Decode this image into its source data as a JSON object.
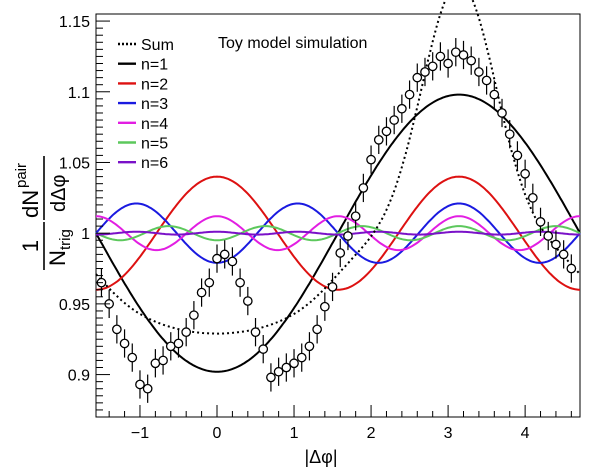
{
  "chart_data": {
    "type": "line",
    "title": "Toy model simulation",
    "xlabel": "|Δφ|",
    "ylabel": {
      "numerator": "dN",
      "numerator_sup": "pair",
      "prefactor_num": "1",
      "prefactor_den": "N",
      "prefactor_den_sub": "trig",
      "denominator": "dΔφ"
    },
    "xlim": [
      -1.5708,
      4.7124
    ],
    "ylim": [
      0.87,
      1.155
    ],
    "xticks": [
      -1,
      0,
      1,
      2,
      3,
      4
    ],
    "xtick_labels": [
      "−1",
      "0",
      "1",
      "2",
      "3",
      "4"
    ],
    "yticks": [
      0.9,
      0.95,
      1,
      1.05,
      1.1,
      1.15
    ],
    "ytick_labels": [
      "0.9",
      "0.95",
      "1",
      "1.05",
      "1.1",
      "1.15"
    ],
    "grid": false,
    "legend_position": "top-left",
    "model": "y = 1 + Σ 2·vn·cos(n·Δφ)",
    "series": [
      {
        "name": "n=1",
        "color": "#000000",
        "style": "solid",
        "v2n": -0.098,
        "n": 1
      },
      {
        "name": "n=2",
        "color": "#dd1111",
        "style": "solid",
        "v2n": 0.04,
        "n": 2
      },
      {
        "name": "n=3",
        "color": "#1a1ae0",
        "style": "solid",
        "v2n": -0.021,
        "n": 3
      },
      {
        "name": "n=4",
        "color": "#e21ee2",
        "style": "solid",
        "v2n": 0.012,
        "n": 4
      },
      {
        "name": "n=5",
        "color": "#5cc85c",
        "style": "solid",
        "v2n": -0.005,
        "n": 5
      },
      {
        "name": "n=6",
        "color": "#7a11c8",
        "style": "solid",
        "v2n": 0.001,
        "n": 6
      }
    ],
    "sum_series": {
      "name": "Sum",
      "color": "#000000",
      "style": "dotted"
    },
    "points": [
      {
        "x": -1.5,
        "y": 0.965
      },
      {
        "x": -1.4,
        "y": 0.95
      },
      {
        "x": -1.3,
        "y": 0.932
      },
      {
        "x": -1.2,
        "y": 0.922
      },
      {
        "x": -1.1,
        "y": 0.912
      },
      {
        "x": -1.0,
        "y": 0.893
      },
      {
        "x": -0.9,
        "y": 0.89
      },
      {
        "x": -0.8,
        "y": 0.908
      },
      {
        "x": -0.7,
        "y": 0.91
      },
      {
        "x": -0.6,
        "y": 0.92
      },
      {
        "x": -0.5,
        "y": 0.922
      },
      {
        "x": -0.4,
        "y": 0.93
      },
      {
        "x": -0.3,
        "y": 0.942
      },
      {
        "x": -0.2,
        "y": 0.958
      },
      {
        "x": -0.1,
        "y": 0.965
      },
      {
        "x": 0.0,
        "y": 0.982
      },
      {
        "x": 0.1,
        "y": 0.985
      },
      {
        "x": 0.2,
        "y": 0.98
      },
      {
        "x": 0.3,
        "y": 0.965
      },
      {
        "x": 0.4,
        "y": 0.952
      },
      {
        "x": 0.5,
        "y": 0.93
      },
      {
        "x": 0.6,
        "y": 0.918
      },
      {
        "x": 0.7,
        "y": 0.898
      },
      {
        "x": 0.8,
        "y": 0.902
      },
      {
        "x": 0.9,
        "y": 0.905
      },
      {
        "x": 1.0,
        "y": 0.908
      },
      {
        "x": 1.1,
        "y": 0.912
      },
      {
        "x": 1.2,
        "y": 0.92
      },
      {
        "x": 1.3,
        "y": 0.932
      },
      {
        "x": 1.4,
        "y": 0.948
      },
      {
        "x": 1.5,
        "y": 0.962
      },
      {
        "x": 1.6,
        "y": 0.986
      },
      {
        "x": 1.7,
        "y": 0.998
      },
      {
        "x": 1.8,
        "y": 1.012
      },
      {
        "x": 1.9,
        "y": 1.032
      },
      {
        "x": 2.0,
        "y": 1.052
      },
      {
        "x": 2.1,
        "y": 1.066
      },
      {
        "x": 2.2,
        "y": 1.072
      },
      {
        "x": 2.3,
        "y": 1.08
      },
      {
        "x": 2.4,
        "y": 1.088
      },
      {
        "x": 2.5,
        "y": 1.098
      },
      {
        "x": 2.6,
        "y": 1.11
      },
      {
        "x": 2.7,
        "y": 1.114
      },
      {
        "x": 2.8,
        "y": 1.118
      },
      {
        "x": 2.9,
        "y": 1.125
      },
      {
        "x": 3.0,
        "y": 1.12
      },
      {
        "x": 3.1,
        "y": 1.128
      },
      {
        "x": 3.2,
        "y": 1.126
      },
      {
        "x": 3.3,
        "y": 1.122
      },
      {
        "x": 3.4,
        "y": 1.114
      },
      {
        "x": 3.5,
        "y": 1.108
      },
      {
        "x": 3.6,
        "y": 1.098
      },
      {
        "x": 3.7,
        "y": 1.085
      },
      {
        "x": 3.8,
        "y": 1.07
      },
      {
        "x": 3.9,
        "y": 1.055
      },
      {
        "x": 4.0,
        "y": 1.042
      },
      {
        "x": 4.1,
        "y": 1.025
      },
      {
        "x": 4.2,
        "y": 1.008
      },
      {
        "x": 4.3,
        "y": 0.998
      },
      {
        "x": 4.4,
        "y": 0.992
      },
      {
        "x": 4.5,
        "y": 0.985
      },
      {
        "x": 4.6,
        "y": 0.975
      }
    ],
    "error_half": 0.01
  }
}
